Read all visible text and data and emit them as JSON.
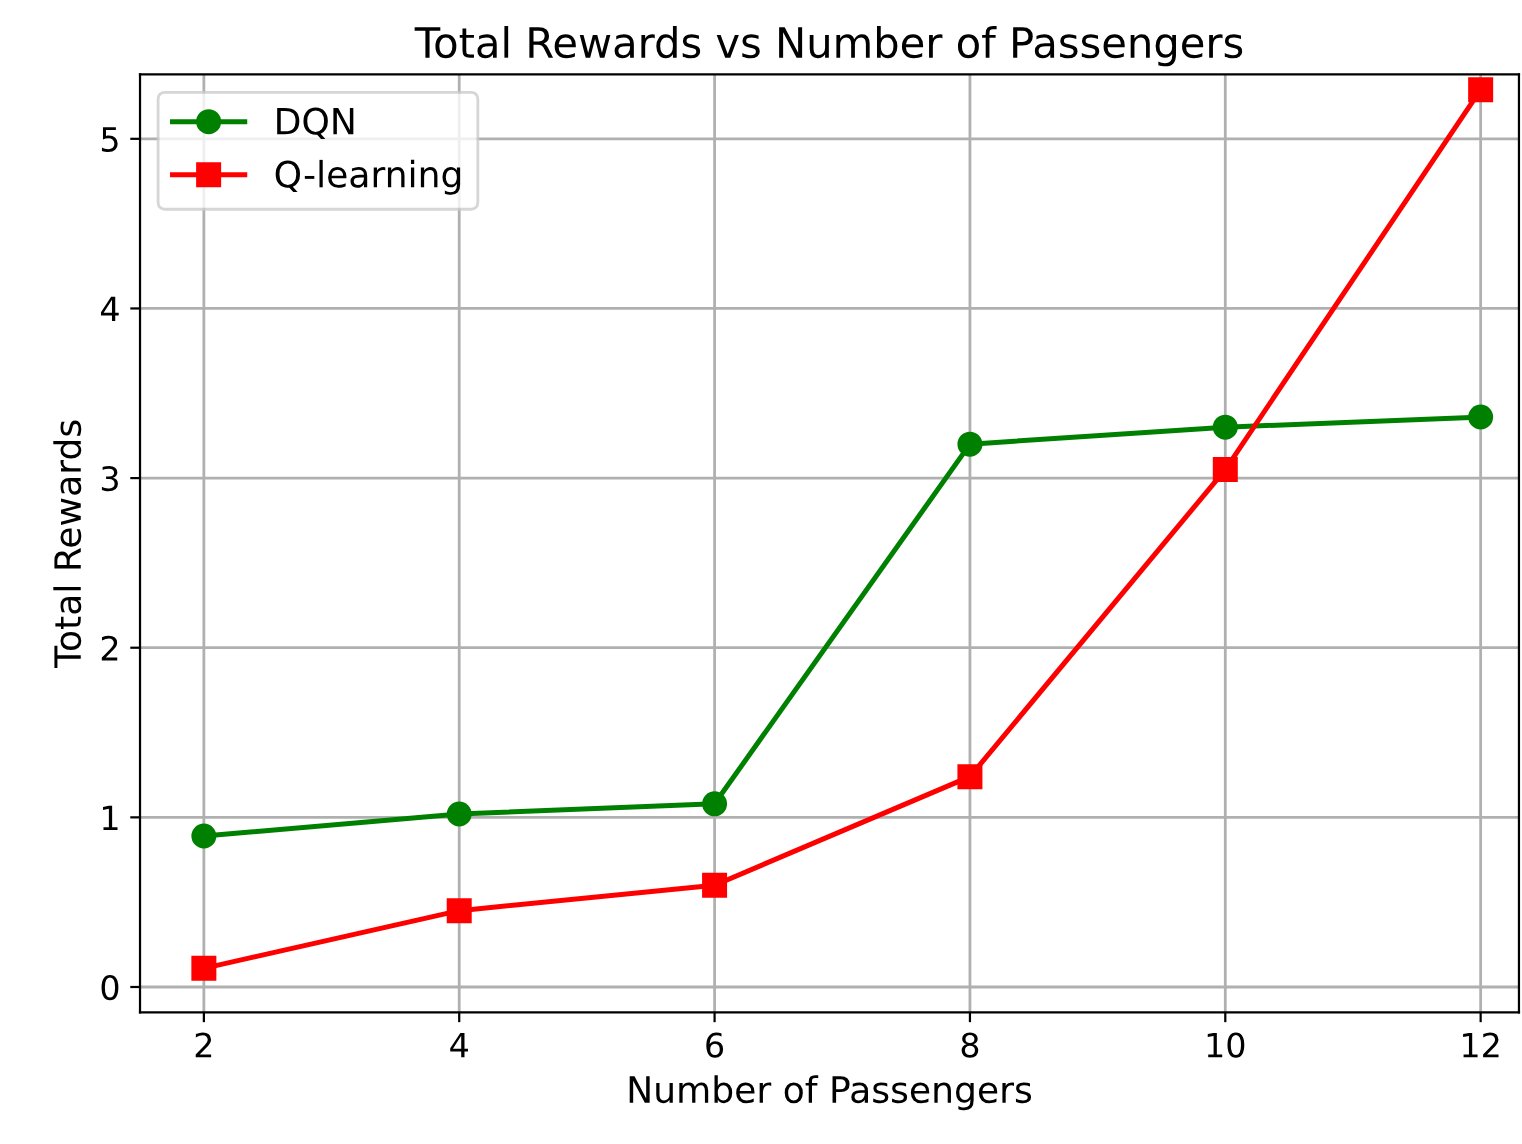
{
  "chart_data": {
    "type": "line",
    "title": "Total Rewards vs Number of Passengers",
    "xlabel": "Number of Passengers",
    "ylabel": "Total Rewards",
    "x": [
      2,
      4,
      6,
      8,
      10,
      12
    ],
    "series": [
      {
        "name": "DQN",
        "color": "#008000",
        "marker": "circle",
        "values": [
          0.89,
          1.02,
          1.08,
          3.2,
          3.3,
          3.36
        ]
      },
      {
        "name": "Q-learning",
        "color": "#ff0000",
        "marker": "square",
        "values": [
          0.11,
          0.45,
          0.6,
          1.24,
          3.05,
          5.29
        ]
      }
    ],
    "xlim": [
      1.5,
      12.3
    ],
    "xticks": [
      2,
      4,
      6,
      8,
      10,
      12
    ],
    "ylim": [
      -0.15,
      5.38
    ],
    "yticks": [
      0,
      1,
      2,
      3,
      4,
      5
    ],
    "grid": true,
    "legend": "top left",
    "line_style": "solid"
  }
}
